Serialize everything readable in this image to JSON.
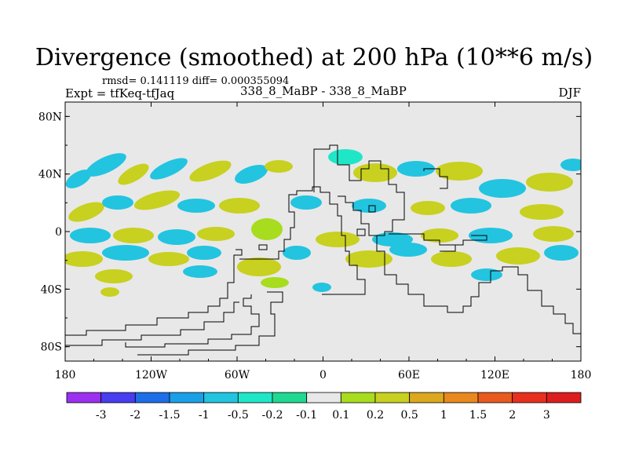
{
  "title": "Divergence (smoothed) at 200 hPa (10**6 m/s)",
  "stats": "rmsd= 0.141119 diff= 0.000355094",
  "experiment": "Expt = tfKeq-tfJaq",
  "runs": "338_8_MaBP - 338_8_MaBP",
  "season": "DJF",
  "chart_data": {
    "type": "heatmap",
    "x_axis": {
      "ticks": [
        "180",
        "120W",
        "60W",
        "0",
        "60E",
        "120E",
        "180"
      ],
      "range": [
        -180,
        180
      ]
    },
    "y_axis": {
      "ticks": [
        "80N",
        "40N",
        "0",
        "40S",
        "80S"
      ],
      "range": [
        -90,
        90
      ]
    },
    "colorbar": {
      "labels": [
        "-3",
        "-2",
        "-1.5",
        "-1",
        "-0.5",
        "-0.2",
        "-0.1",
        "0.1",
        "0.2",
        "0.5",
        "1",
        "1.5",
        "2",
        "3"
      ],
      "colors": [
        "#9b30f0",
        "#4a3cf0",
        "#1e6ee8",
        "#1aa0e6",
        "#22c4e0",
        "#20e6c8",
        "#20d890",
        "#e8e8e8",
        "#a8dc1e",
        "#c8d020",
        "#dca81e",
        "#e8881e",
        "#e85a1e",
        "#e8301e",
        "#dc1e1e"
      ]
    },
    "background_color": "#e8e8e8"
  }
}
